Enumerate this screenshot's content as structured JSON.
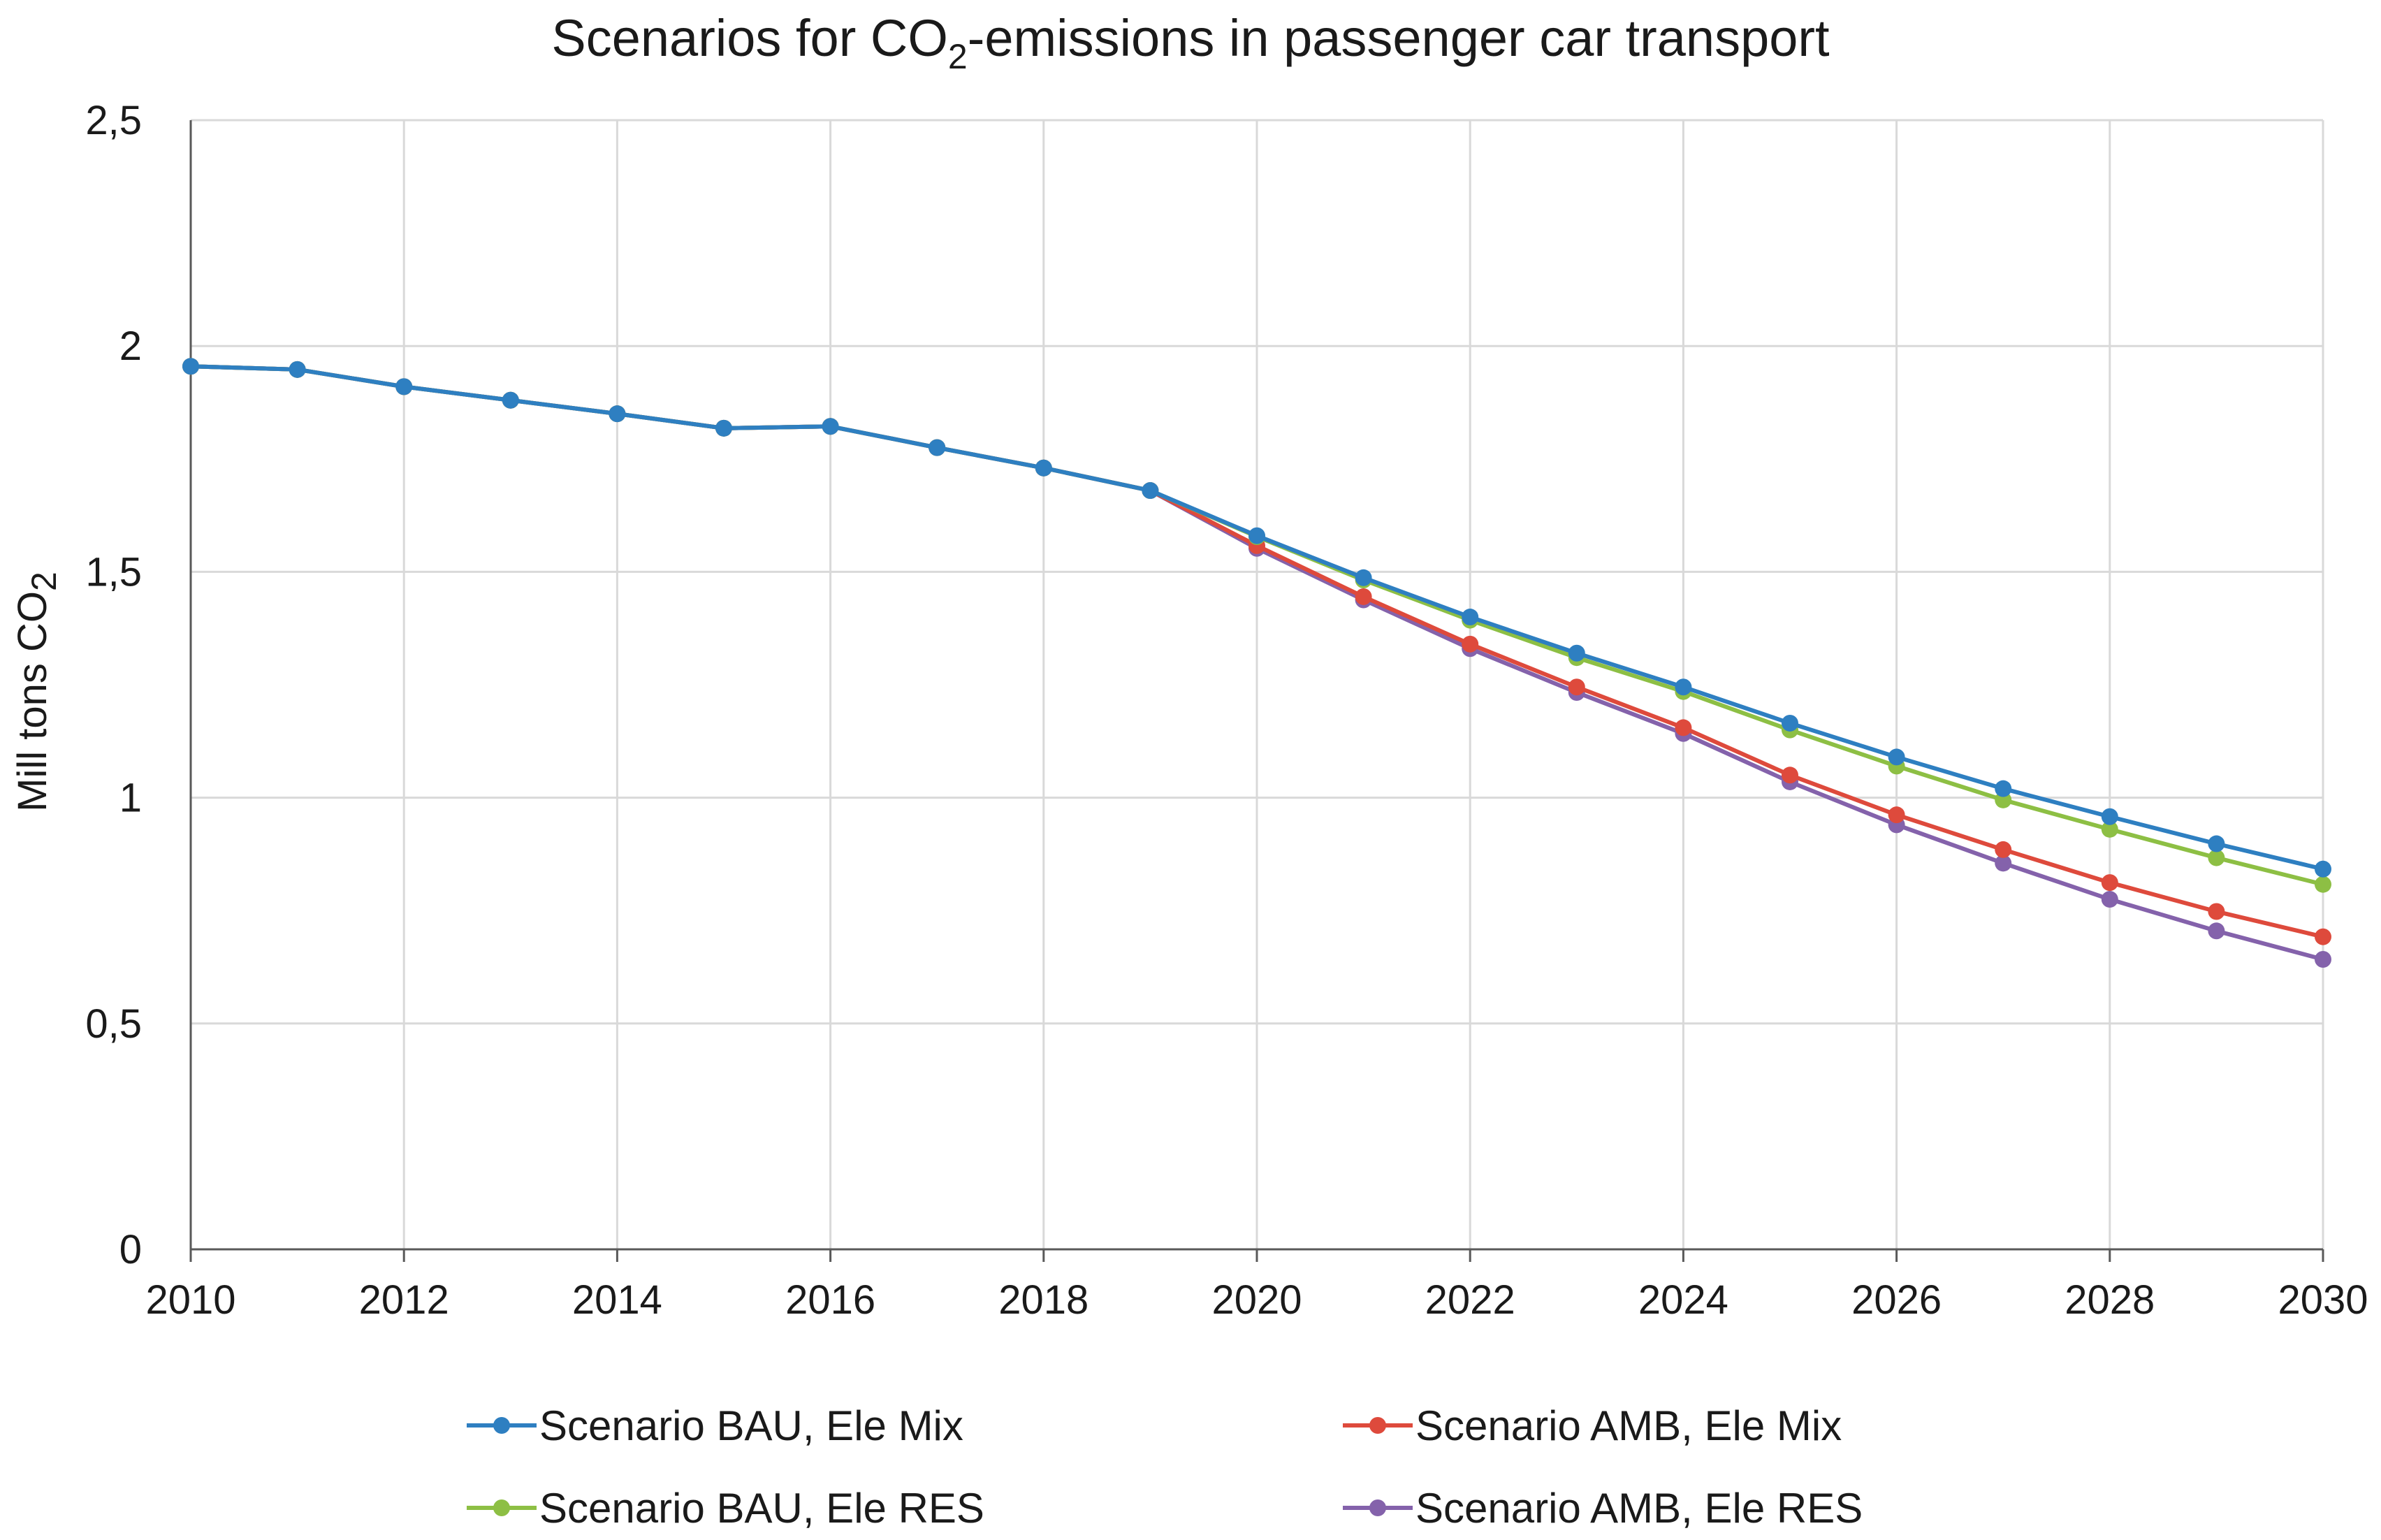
{
  "chart_data": {
    "type": "line",
    "title_main": "Scenarios for CO",
    "title_sub": "2",
    "title_rest": "-emissions in passenger car transport",
    "ylabel_main": "Mill tons CO",
    "ylabel_sub": "2",
    "xlabel": "",
    "xlim": [
      2010,
      2030
    ],
    "ylim": [
      0,
      2.5
    ],
    "grid": true,
    "legend_position": "bottom",
    "x": [
      2010,
      2011,
      2012,
      2013,
      2014,
      2015,
      2016,
      2017,
      2018,
      2019,
      2020,
      2021,
      2022,
      2023,
      2024,
      2025,
      2026,
      2027,
      2028,
      2029,
      2030
    ],
    "x_ticks": [
      "2010",
      "2012",
      "2014",
      "2016",
      "2018",
      "2020",
      "2022",
      "2024",
      "2026",
      "2028",
      "2030"
    ],
    "x_tick_values": [
      2010,
      2012,
      2014,
      2016,
      2018,
      2020,
      2022,
      2024,
      2026,
      2028,
      2030
    ],
    "y_ticks": [
      "0",
      "0,5",
      "1",
      "1,5",
      "2",
      "2,5"
    ],
    "y_tick_values": [
      0,
      0.5,
      1,
      1.5,
      2,
      2.5
    ],
    "series": [
      {
        "name": "Scenario BAU, Ele Mix",
        "color": "#2e7fc1",
        "values": [
          1.955,
          1.948,
          1.91,
          1.88,
          1.85,
          1.818,
          1.822,
          1.775,
          1.73,
          1.68,
          1.58,
          1.487,
          1.4,
          1.32,
          1.245,
          1.165,
          1.09,
          1.02,
          0.958,
          0.898,
          0.842
        ]
      },
      {
        "name": "Scenario AMB, Ele Mix",
        "color": "#de4a3c",
        "values": [
          1.955,
          1.948,
          1.91,
          1.88,
          1.85,
          1.818,
          1.822,
          1.775,
          1.73,
          1.68,
          1.558,
          1.445,
          1.34,
          1.245,
          1.155,
          1.05,
          0.962,
          0.885,
          0.812,
          0.748,
          0.692
        ]
      },
      {
        "name": "Scenario BAU, Ele RES",
        "color": "#8dbf44",
        "values": [
          1.955,
          1.948,
          1.91,
          1.88,
          1.85,
          1.818,
          1.822,
          1.775,
          1.73,
          1.68,
          1.578,
          1.482,
          1.393,
          1.31,
          1.235,
          1.15,
          1.07,
          0.995,
          0.93,
          0.867,
          0.808
        ]
      },
      {
        "name": "Scenario AMB, Ele RES",
        "color": "#8462ab",
        "values": [
          1.955,
          1.948,
          1.91,
          1.88,
          1.85,
          1.818,
          1.822,
          1.775,
          1.73,
          1.68,
          1.552,
          1.438,
          1.33,
          1.233,
          1.142,
          1.035,
          0.94,
          0.855,
          0.775,
          0.705,
          0.642
        ]
      }
    ]
  }
}
